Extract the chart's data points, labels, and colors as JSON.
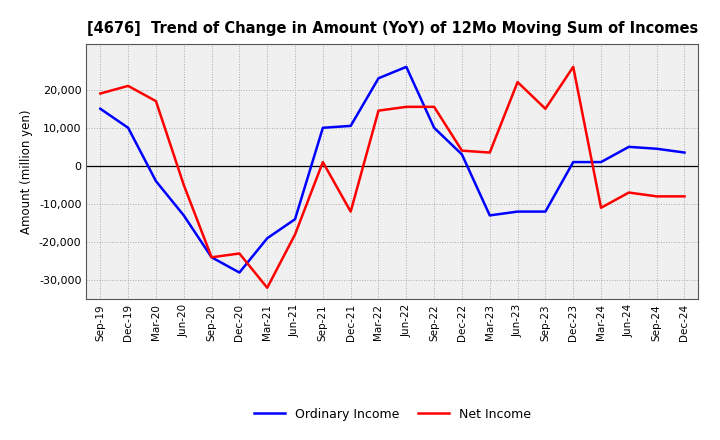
{
  "title": "[4676]  Trend of Change in Amount (YoY) of 12Mo Moving Sum of Incomes",
  "ylabel": "Amount (million yen)",
  "labels": [
    "Sep-19",
    "Dec-19",
    "Mar-20",
    "Jun-20",
    "Sep-20",
    "Dec-20",
    "Mar-21",
    "Jun-21",
    "Sep-21",
    "Dec-21",
    "Mar-22",
    "Jun-22",
    "Sep-22",
    "Dec-22",
    "Mar-23",
    "Jun-23",
    "Sep-23",
    "Dec-23",
    "Mar-24",
    "Jun-24",
    "Sep-24",
    "Dec-24"
  ],
  "ordinary_income": [
    15000,
    10000,
    -4000,
    -13000,
    -24000,
    -28000,
    -19000,
    -14000,
    10000,
    10500,
    23000,
    26000,
    10000,
    3000,
    -13000,
    -12000,
    -12000,
    1000,
    1000,
    5000,
    4500,
    3500
  ],
  "net_income": [
    19000,
    21000,
    17000,
    -5000,
    -24000,
    -23000,
    -32000,
    -18000,
    1000,
    -12000,
    14500,
    15500,
    15500,
    4000,
    3500,
    22000,
    15000,
    26000,
    -11000,
    -7000,
    -8000,
    -8000
  ],
  "ordinary_income_color": "#0000ff",
  "net_income_color": "#ff0000",
  "background_color": "#ffffff",
  "plot_bg_color": "#f0f0f0",
  "grid_color": "#aaaaaa",
  "ylim": [
    -35000,
    32000
  ],
  "yticks": [
    -30000,
    -20000,
    -10000,
    0,
    10000,
    20000
  ],
  "legend_labels": [
    "Ordinary Income",
    "Net Income"
  ]
}
